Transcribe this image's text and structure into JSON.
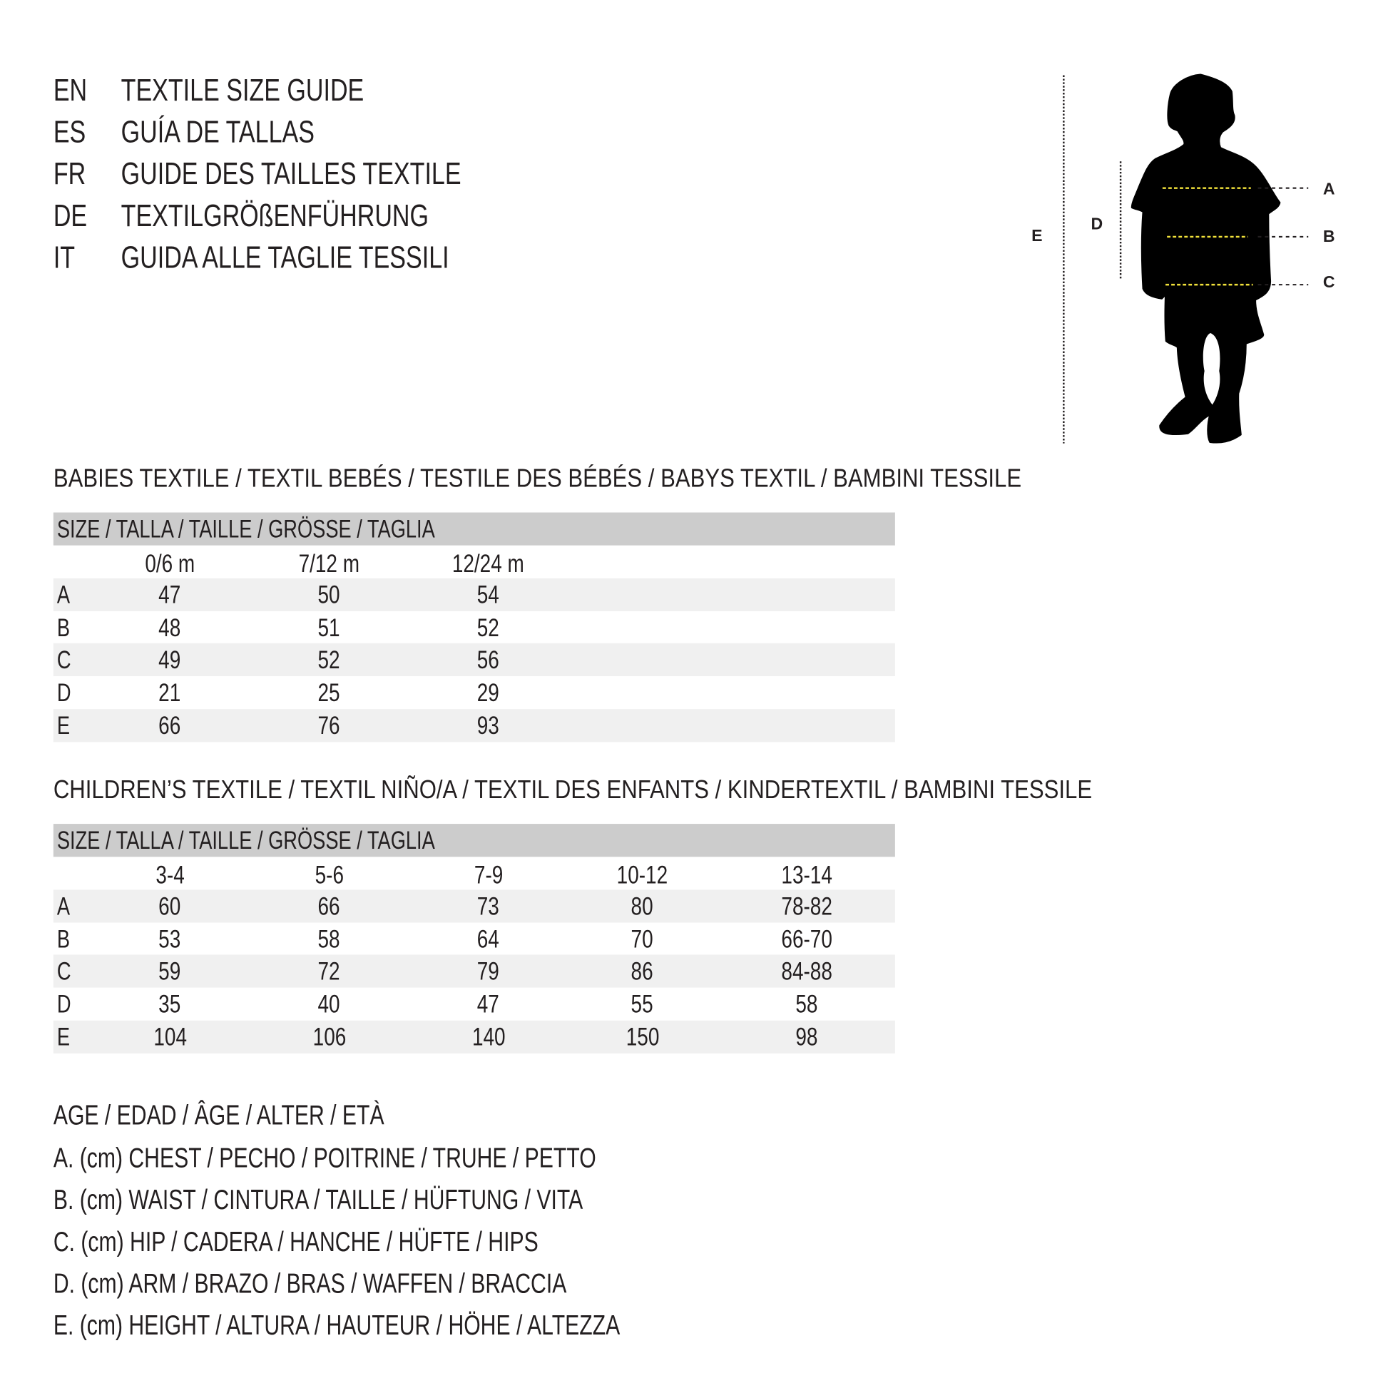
{
  "titles": [
    {
      "code": "EN",
      "text": "TEXTILE SIZE GUIDE"
    },
    {
      "code": "ES",
      "text": "GUÍA DE TALLAS"
    },
    {
      "code": "FR",
      "text": "GUIDE DES TAILLES TEXTILE"
    },
    {
      "code": "DE",
      "text": "TEXTILGRÖßENFÜHRUNG"
    },
    {
      "code": "IT",
      "text": "GUIDA ALLE TAGLIE TESSILI"
    }
  ],
  "babies": {
    "heading": "BABIES TEXTILE / TEXTIL BEBÉS / TESTILE DES BÉBÉS / BABYS TEXTIL / BAMBINI TESSILE",
    "size_header": "SIZE / TALLA / TAILLE / GRÖSSE / TAGLIA",
    "columns": [
      "0/6 m",
      "7/12 m",
      "12/24 m"
    ],
    "rows": [
      {
        "label": "A",
        "values": [
          "47",
          "50",
          "54"
        ]
      },
      {
        "label": "B",
        "values": [
          "48",
          "51",
          "52"
        ]
      },
      {
        "label": "C",
        "values": [
          "49",
          "52",
          "56"
        ]
      },
      {
        "label": "D",
        "values": [
          "21",
          "25",
          "29"
        ]
      },
      {
        "label": "E",
        "values": [
          "66",
          "76",
          "93"
        ]
      }
    ]
  },
  "children": {
    "heading": "CHILDREN’S TEXTILE / TEXTIL NIÑO/A / TEXTIL DES ENFANTS / KINDERTEXTIL / BAMBINI TESSILE",
    "size_header": "SIZE / TALLA / TAILLE / GRÖSSE / TAGLIA",
    "columns": [
      "3-4",
      "5-6",
      "7-9",
      "10-12",
      "13-14"
    ],
    "rows": [
      {
        "label": "A",
        "values": [
          "60",
          "66",
          "73",
          "80",
          "78-82"
        ]
      },
      {
        "label": "B",
        "values": [
          "53",
          "58",
          "64",
          "70",
          "66-70"
        ]
      },
      {
        "label": "C",
        "values": [
          "59",
          "72",
          "79",
          "86",
          "84-88"
        ]
      },
      {
        "label": "D",
        "values": [
          "35",
          "40",
          "47",
          "55",
          "58"
        ]
      },
      {
        "label": "E",
        "values": [
          "104",
          "106",
          "140",
          "150",
          "98"
        ]
      }
    ]
  },
  "legend": [
    "AGE / EDAD / ÂGE / ALTER / ETÀ",
    "A. (cm) CHEST / PECHO / POITRINE / TRUHE / PETTO",
    "B. (cm) WAIST / CINTURA / TAILLE / HÜFTUNG / VITA",
    "C. (cm) HIP / CADERA / HANCHE / HÜFTE / HIPS",
    "D. (cm) ARM / BRAZO / BRAS / WAFFEN / BRACCIA",
    "E. (cm) HEIGHT / ALTURA / HAUTEUR / HÖHE / ALTEZZA"
  ],
  "figure": {
    "labels": {
      "a": "A",
      "b": "B",
      "c": "C",
      "d": "D",
      "e": "E"
    },
    "measure_line_color": "#f2e23a",
    "silhouette_color": "#000000"
  },
  "colors": {
    "header_bg": "#cccccc",
    "row_shade": "#f0f0f0",
    "text": "#231f20"
  }
}
